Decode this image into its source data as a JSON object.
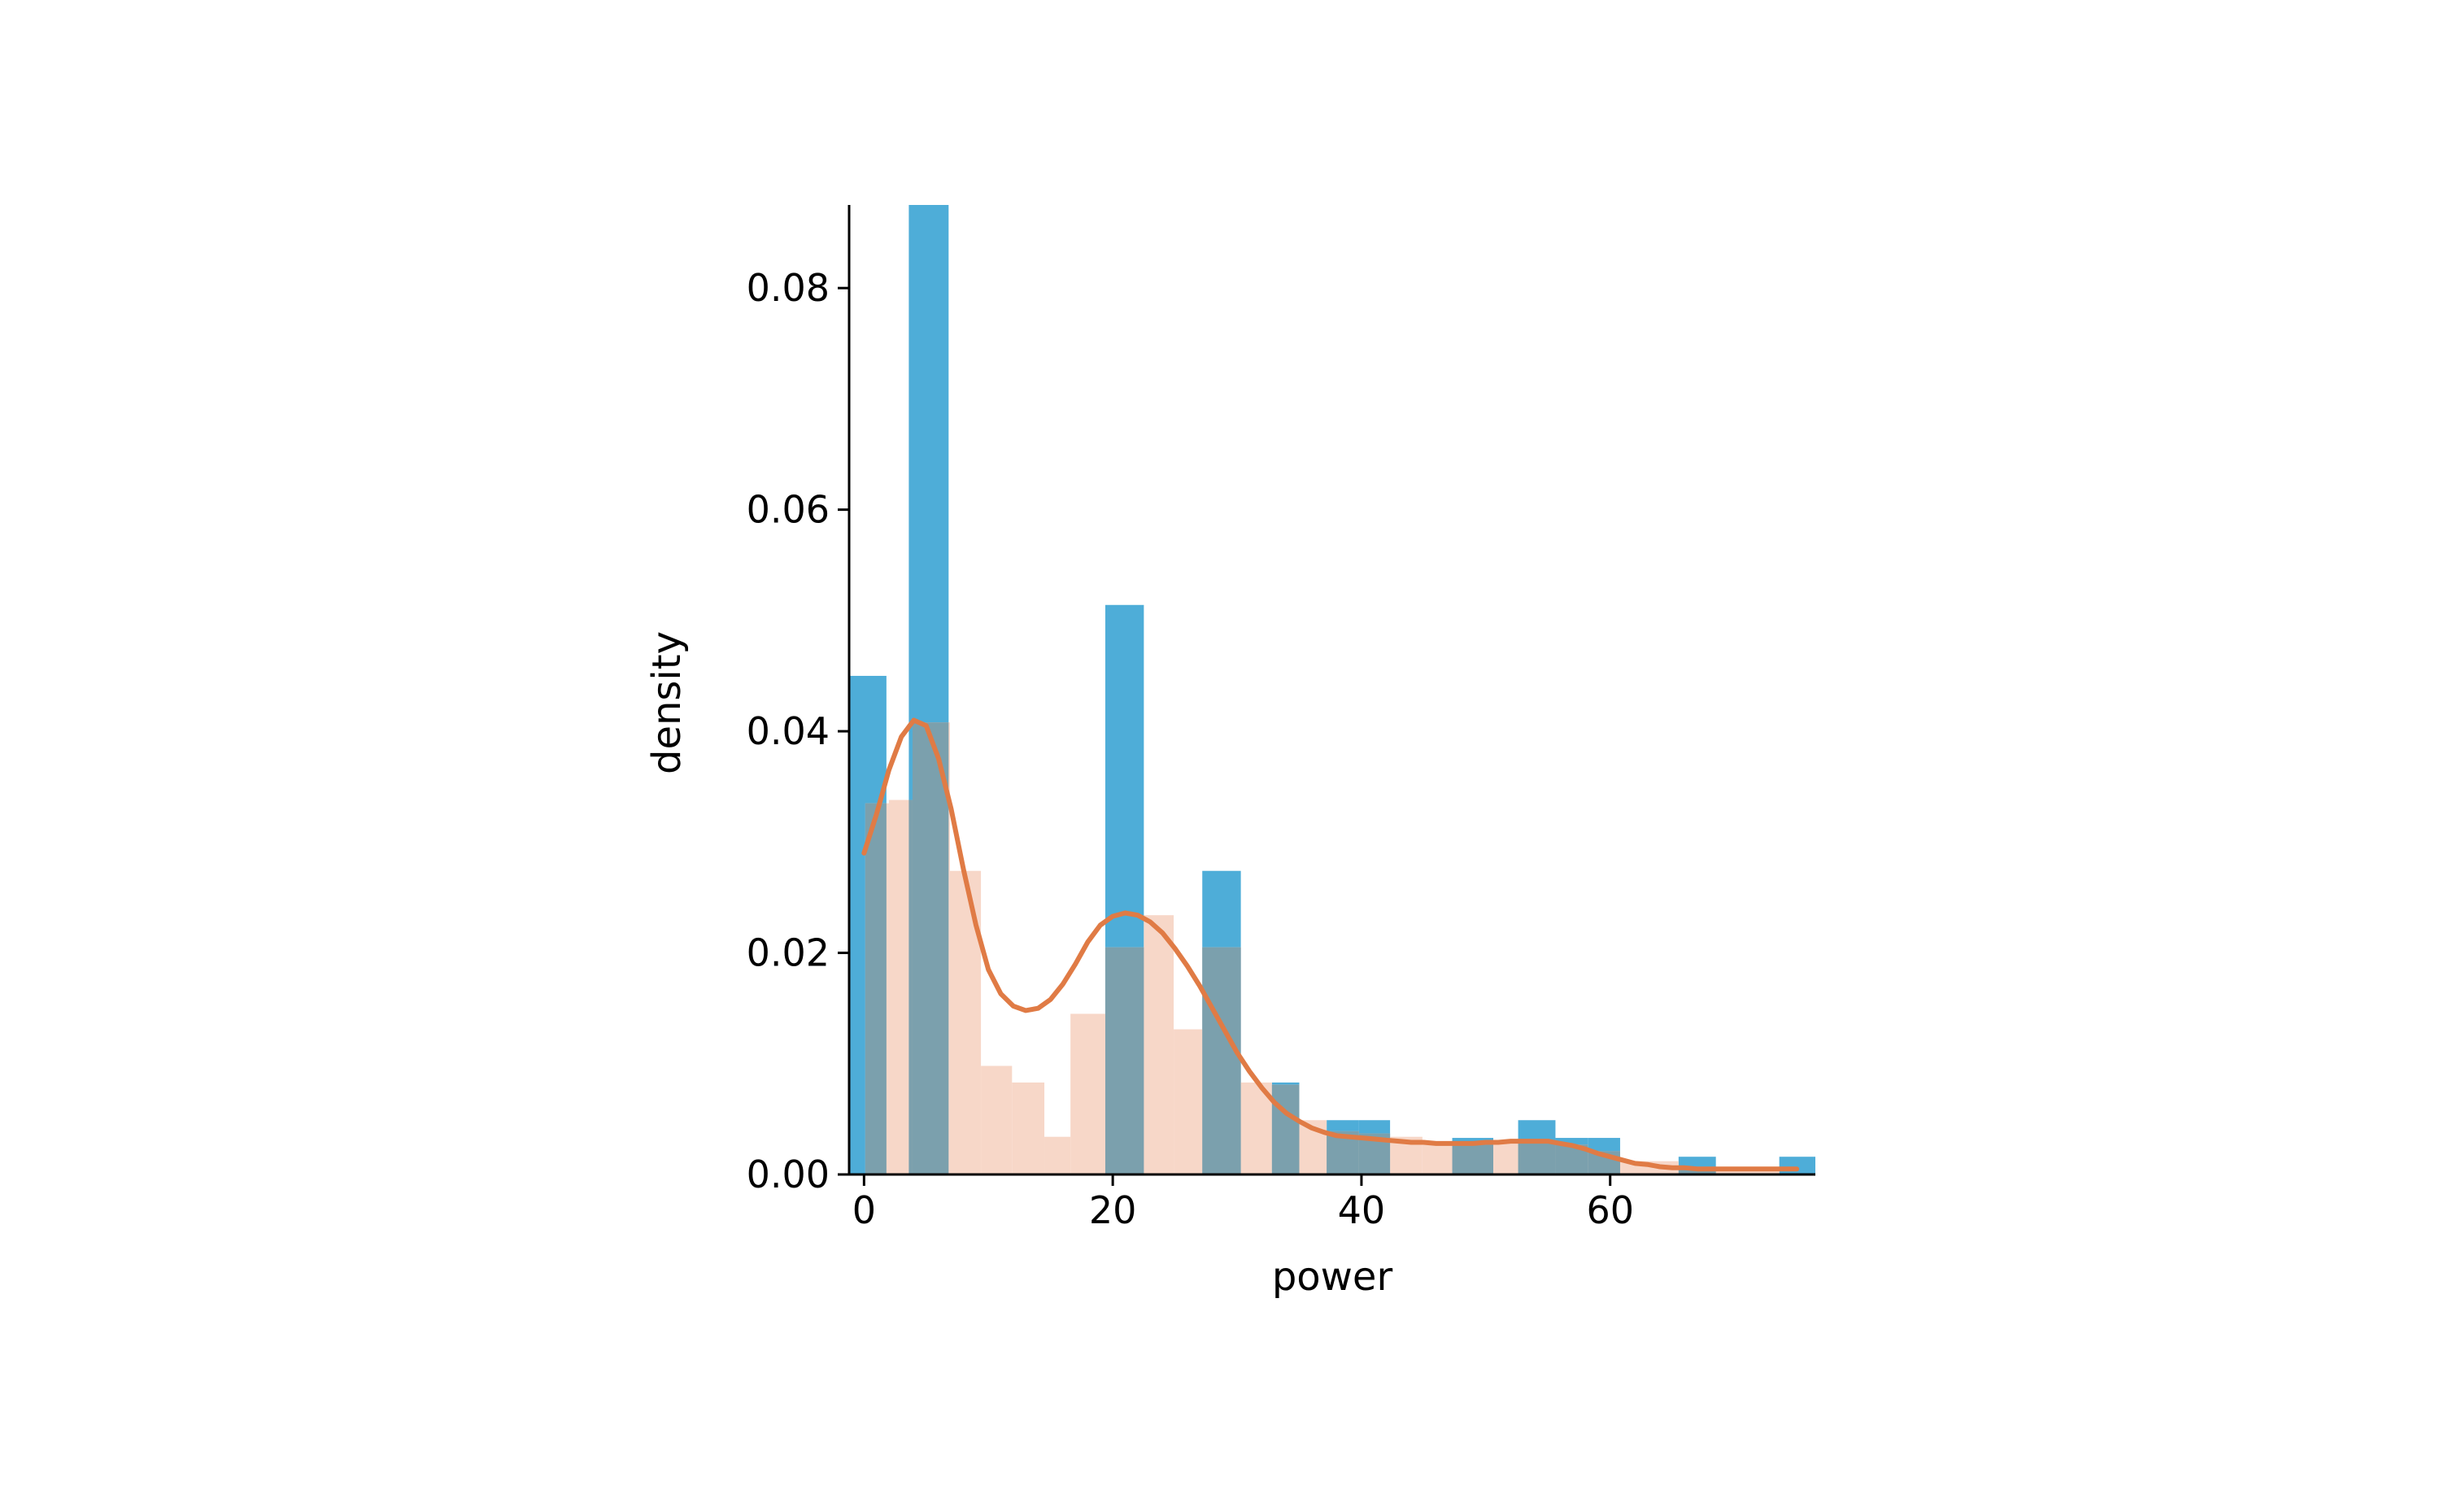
{
  "chart_data": {
    "type": "histogram",
    "xlabel": "power",
    "ylabel": "density",
    "xlim": [
      -1.2,
      76.5
    ],
    "ylim": [
      0,
      0.0875
    ],
    "x_ticks": [
      0,
      20,
      40,
      60
    ],
    "y_ticks": [
      0.0,
      0.02,
      0.04,
      0.06,
      0.08
    ],
    "x_tick_labels": [
      "0",
      "20",
      "40",
      "60"
    ],
    "y_tick_labels": [
      "0.00",
      "0.02",
      "0.04",
      "0.06",
      "0.08"
    ],
    "grid": false,
    "colors": {
      "blue_hist": "#4EADD8",
      "orange_hist": "#F7D7C8",
      "overlap": "#7BA0AD",
      "density_line": "#E07B45"
    },
    "series": [
      {
        "kind": "histogram",
        "color_key": "blue_hist",
        "bins": [
          {
            "x0": -1.2,
            "x1": 1.8,
            "value": 0.045
          },
          {
            "x0": 1.8,
            "x1": 3.6,
            "value": 0.0
          },
          {
            "x0": 3.6,
            "x1": 6.8,
            "value": 0.0876
          },
          {
            "x0": 6.8,
            "x1": 9.3,
            "value": 0.0
          },
          {
            "x0": 9.3,
            "x1": 11.9,
            "value": 0.0
          },
          {
            "x0": 11.9,
            "x1": 14.5,
            "value": 0.0
          },
          {
            "x0": 14.5,
            "x1": 16.6,
            "value": 0.0
          },
          {
            "x0": 16.6,
            "x1": 19.4,
            "value": 0.0
          },
          {
            "x0": 19.4,
            "x1": 22.5,
            "value": 0.0514
          },
          {
            "x0": 22.5,
            "x1": 24.9,
            "value": 0.0
          },
          {
            "x0": 24.9,
            "x1": 27.2,
            "value": 0.0
          },
          {
            "x0": 27.2,
            "x1": 30.3,
            "value": 0.0274
          },
          {
            "x0": 30.3,
            "x1": 32.8,
            "value": 0.0
          },
          {
            "x0": 32.8,
            "x1": 35.0,
            "value": 0.0083
          },
          {
            "x0": 35.0,
            "x1": 37.2,
            "value": 0.0
          },
          {
            "x0": 37.2,
            "x1": 39.8,
            "value": 0.0049
          },
          {
            "x0": 39.8,
            "x1": 42.3,
            "value": 0.0049
          },
          {
            "x0": 42.3,
            "x1": 44.9,
            "value": 0.0
          },
          {
            "x0": 44.9,
            "x1": 47.3,
            "value": 0.0
          },
          {
            "x0": 47.3,
            "x1": 50.6,
            "value": 0.0033
          },
          {
            "x0": 50.6,
            "x1": 52.6,
            "value": 0.0
          },
          {
            "x0": 52.6,
            "x1": 55.6,
            "value": 0.0049
          },
          {
            "x0": 55.6,
            "x1": 58.2,
            "value": 0.0033
          },
          {
            "x0": 58.2,
            "x1": 60.8,
            "value": 0.0033
          },
          {
            "x0": 60.8,
            "x1": 65.5,
            "value": 0.0
          },
          {
            "x0": 65.5,
            "x1": 68.5,
            "value": 0.0016
          },
          {
            "x0": 68.5,
            "x1": 73.6,
            "value": 0.0
          },
          {
            "x0": 73.6,
            "x1": 76.5,
            "value": 0.0016
          }
        ]
      },
      {
        "kind": "histogram",
        "color_key": "orange_hist",
        "bins": [
          {
            "x0": 0.1,
            "x1": 2.0,
            "value": 0.0335
          },
          {
            "x0": 2.0,
            "x1": 3.9,
            "value": 0.0338
          },
          {
            "x0": 3.9,
            "x1": 6.9,
            "value": 0.0408
          },
          {
            "x0": 6.9,
            "x1": 9.4,
            "value": 0.0274
          },
          {
            "x0": 9.4,
            "x1": 11.9,
            "value": 0.0098
          },
          {
            "x0": 11.9,
            "x1": 14.5,
            "value": 0.0083
          },
          {
            "x0": 14.5,
            "x1": 16.6,
            "value": 0.0034
          },
          {
            "x0": 16.6,
            "x1": 19.4,
            "value": 0.0145
          },
          {
            "x0": 19.4,
            "x1": 22.5,
            "value": 0.0205
          },
          {
            "x0": 22.5,
            "x1": 24.9,
            "value": 0.0234
          },
          {
            "x0": 24.9,
            "x1": 27.2,
            "value": 0.0131
          },
          {
            "x0": 27.2,
            "x1": 30.3,
            "value": 0.0205
          },
          {
            "x0": 30.3,
            "x1": 32.8,
            "value": 0.0083
          },
          {
            "x0": 32.8,
            "x1": 35.0,
            "value": 0.0081
          },
          {
            "x0": 35.0,
            "x1": 37.2,
            "value": 0.0049
          },
          {
            "x0": 37.2,
            "x1": 39.8,
            "value": 0.0039
          },
          {
            "x0": 39.8,
            "x1": 42.3,
            "value": 0.0037
          },
          {
            "x0": 42.3,
            "x1": 44.9,
            "value": 0.0034
          },
          {
            "x0": 44.9,
            "x1": 47.3,
            "value": 0.003
          },
          {
            "x0": 47.3,
            "x1": 50.6,
            "value": 0.0029
          },
          {
            "x0": 50.6,
            "x1": 52.6,
            "value": 0.0029
          },
          {
            "x0": 52.6,
            "x1": 55.6,
            "value": 0.003
          },
          {
            "x0": 55.6,
            "x1": 58.2,
            "value": 0.0027
          },
          {
            "x0": 58.2,
            "x1": 60.8,
            "value": 0.0021
          },
          {
            "x0": 60.8,
            "x1": 65.5,
            "value": 0.0012
          },
          {
            "x0": 65.5,
            "x1": 68.5,
            "value": 0.0007
          },
          {
            "x0": 68.5,
            "x1": 73.6,
            "value": 0.0005
          }
        ]
      },
      {
        "kind": "density_line",
        "color_key": "density_line",
        "points": [
          [
            0,
            0.029
          ],
          [
            1,
            0.0325
          ],
          [
            2,
            0.0365
          ],
          [
            3,
            0.0395
          ],
          [
            4,
            0.041
          ],
          [
            5,
            0.0405
          ],
          [
            6,
            0.0375
          ],
          [
            7,
            0.033
          ],
          [
            8,
            0.0275
          ],
          [
            9,
            0.0225
          ],
          [
            10,
            0.0185
          ],
          [
            11,
            0.0163
          ],
          [
            12,
            0.0152
          ],
          [
            13,
            0.0148
          ],
          [
            14,
            0.015
          ],
          [
            15,
            0.0158
          ],
          [
            16,
            0.0172
          ],
          [
            17,
            0.019
          ],
          [
            18,
            0.021
          ],
          [
            19,
            0.0225
          ],
          [
            20,
            0.0233
          ],
          [
            21,
            0.0236
          ],
          [
            22,
            0.0234
          ],
          [
            23,
            0.0228
          ],
          [
            24,
            0.0218
          ],
          [
            25,
            0.0204
          ],
          [
            26,
            0.0188
          ],
          [
            27,
            0.017
          ],
          [
            28,
            0.015
          ],
          [
            29,
            0.013
          ],
          [
            30,
            0.011
          ],
          [
            31,
            0.0093
          ],
          [
            32,
            0.0078
          ],
          [
            33,
            0.0065
          ],
          [
            34,
            0.0055
          ],
          [
            35,
            0.0048
          ],
          [
            36,
            0.0042
          ],
          [
            37,
            0.0038
          ],
          [
            38,
            0.0035
          ],
          [
            39,
            0.0034
          ],
          [
            40,
            0.0033
          ],
          [
            41,
            0.0032
          ],
          [
            42,
            0.0031
          ],
          [
            43,
            0.003
          ],
          [
            44,
            0.0029
          ],
          [
            45,
            0.0029
          ],
          [
            46,
            0.0028
          ],
          [
            47,
            0.0028
          ],
          [
            48,
            0.0028
          ],
          [
            49,
            0.0028
          ],
          [
            50,
            0.0029
          ],
          [
            51,
            0.0029
          ],
          [
            52,
            0.003
          ],
          [
            53,
            0.003
          ],
          [
            54,
            0.003
          ],
          [
            55,
            0.003
          ],
          [
            56,
            0.0028
          ],
          [
            57,
            0.0026
          ],
          [
            58,
            0.0023
          ],
          [
            59,
            0.0019
          ],
          [
            60,
            0.0016
          ],
          [
            61,
            0.0013
          ],
          [
            62,
            0.001
          ],
          [
            63,
            0.0009
          ],
          [
            64,
            0.0007
          ],
          [
            65,
            0.0006
          ],
          [
            66,
            0.0006
          ],
          [
            67,
            0.0005
          ],
          [
            68,
            0.0005
          ],
          [
            69,
            0.0005
          ],
          [
            70,
            0.0005
          ],
          [
            71,
            0.0005
          ],
          [
            72,
            0.0005
          ],
          [
            73,
            0.0005
          ],
          [
            74,
            0.0005
          ],
          [
            75,
            0.0005
          ]
        ]
      }
    ]
  }
}
